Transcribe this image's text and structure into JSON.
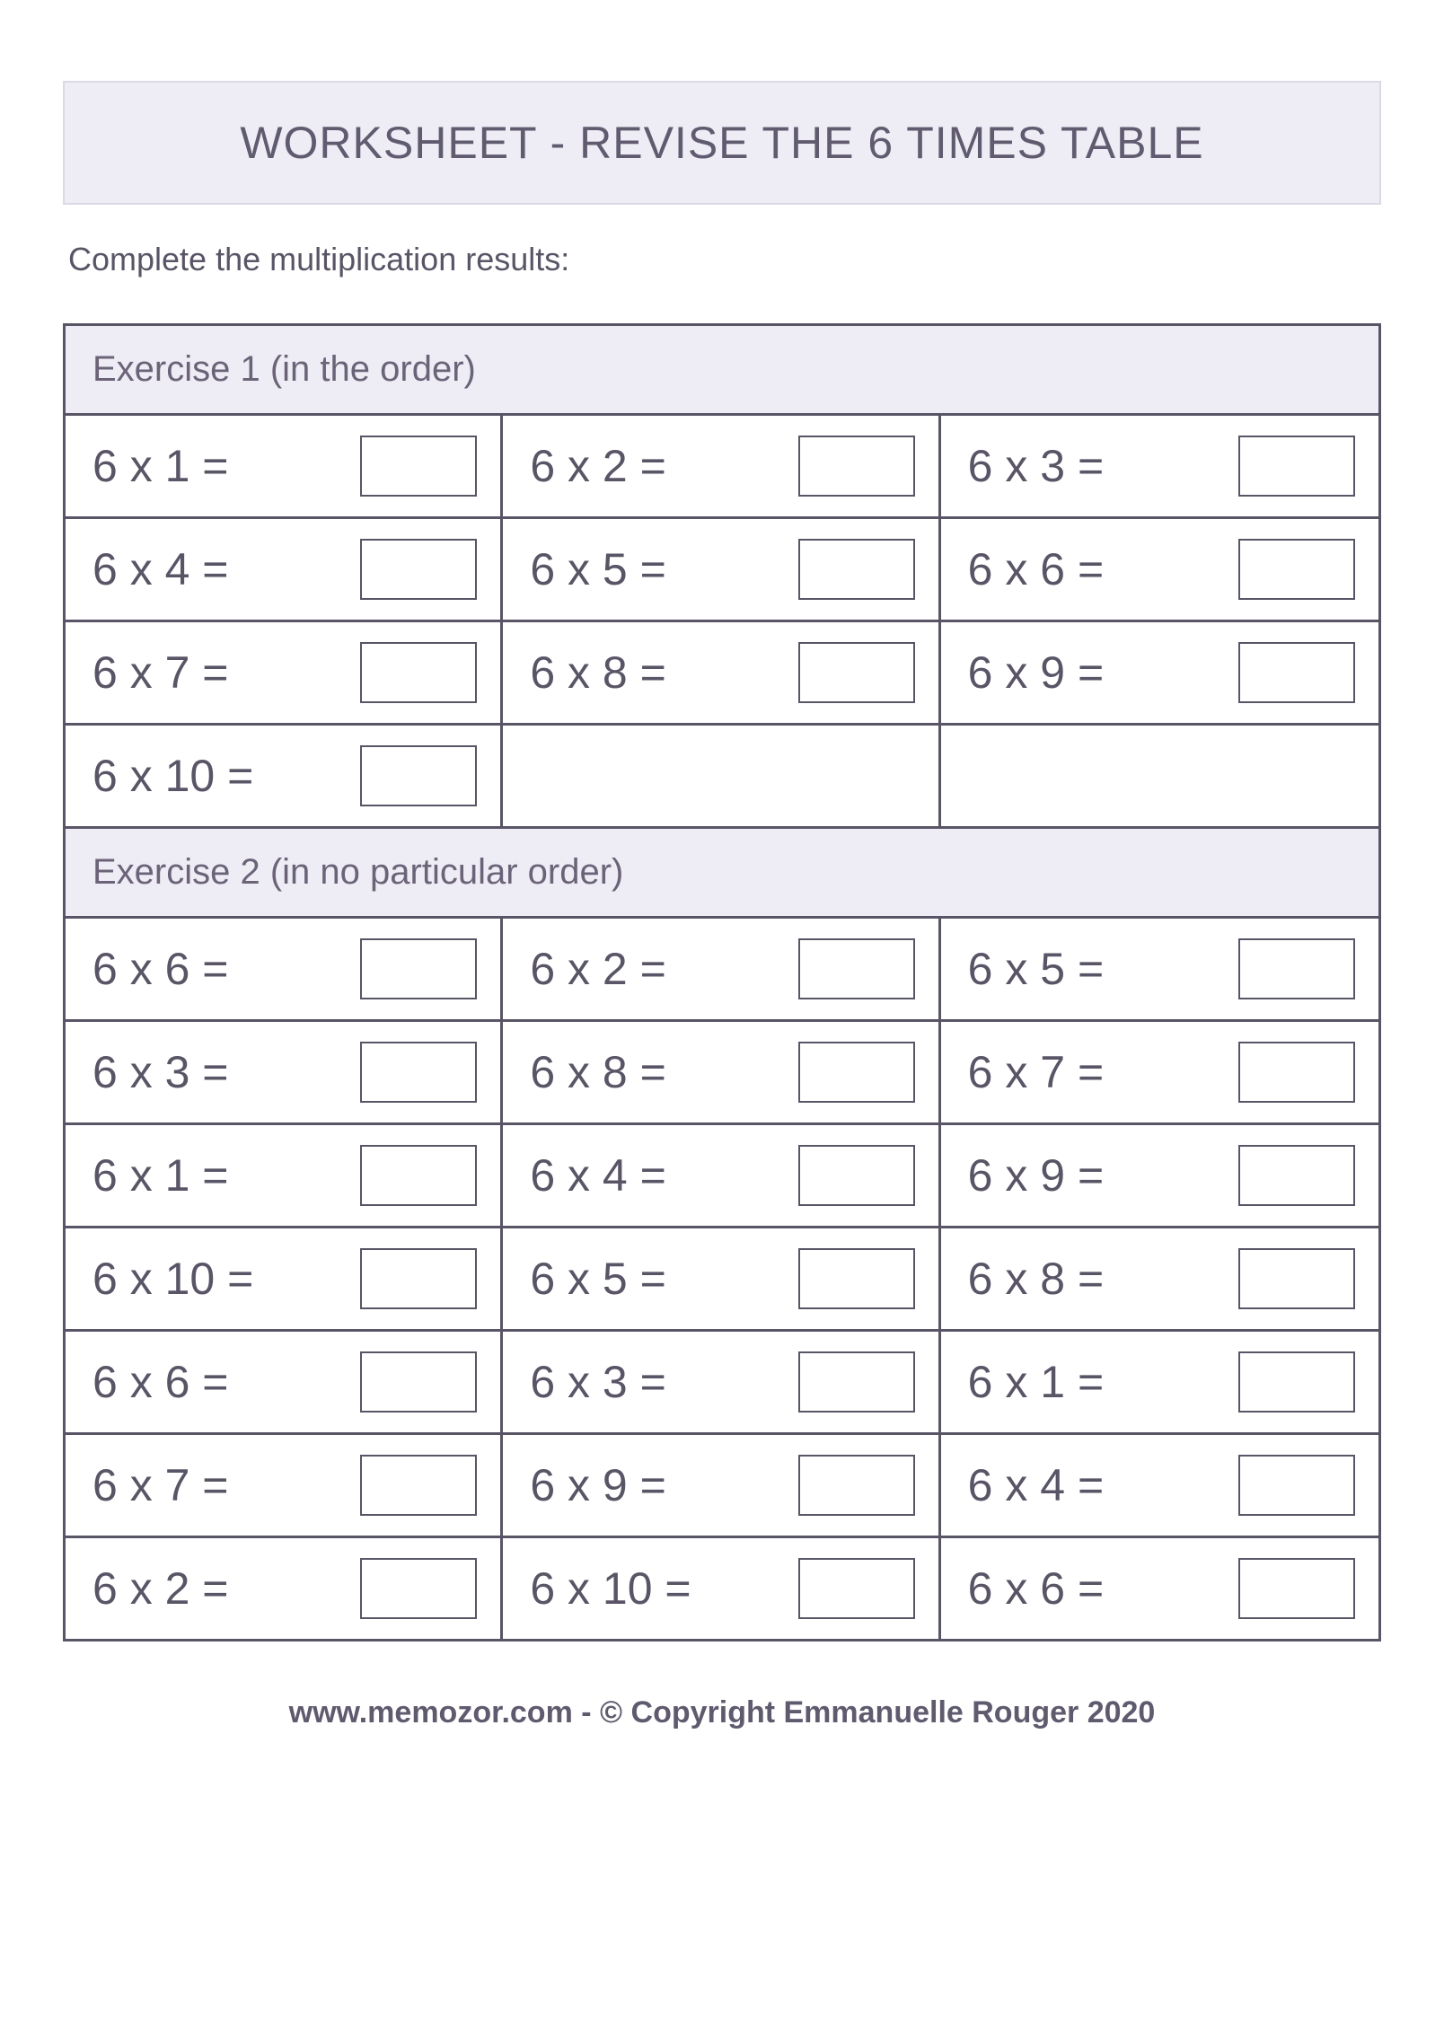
{
  "colors": {
    "header_bg": "#eeecf5",
    "header_border": "#dcd9e6",
    "cell_border": "#5a5566",
    "text": "#5a5566",
    "title_text": "#615b70",
    "page_bg": "#ffffff"
  },
  "typography": {
    "title_fontsize": 50,
    "instruction_fontsize": 36,
    "section_header_fontsize": 40,
    "problem_fontsize": 50,
    "footer_fontsize": 34
  },
  "title": "WORKSHEET - REVISE THE 6 TIMES TABLE",
  "instruction": "Complete the multiplication results:",
  "exercises": [
    {
      "label": "Exercise 1 (in the order)",
      "columns": 3,
      "problems": [
        "6 x 1 =",
        "6 x 2 =",
        "6 x 3 =",
        "6 x 4 =",
        "6 x 5 =",
        "6 x 6 =",
        "6 x 7 =",
        "6 x 8 =",
        "6 x 9 =",
        "6 x 10 =",
        "",
        ""
      ]
    },
    {
      "label": "Exercise 2 (in no particular order)",
      "columns": 3,
      "problems": [
        "6 x 6 =",
        "6 x 2 =",
        "6 x 5 =",
        "6 x 3 =",
        "6 x 8 =",
        "6 x 7 =",
        "6 x 1 =",
        "6 x 4 =",
        "6 x 9 =",
        "6 x 10 =",
        "6 x 5 =",
        "6 x 8 =",
        "6 x 6 =",
        "6 x 3 =",
        "6 x 1 =",
        "6 x 7 =",
        "6 x 9 =",
        "6 x 4 =",
        "6 x 2 =",
        "6 x 10 =",
        "6 x 6 ="
      ]
    }
  ],
  "footer": {
    "site": "www.memozor.com",
    "rest": " - © Copyright Emmanuelle Rouger 2020"
  }
}
